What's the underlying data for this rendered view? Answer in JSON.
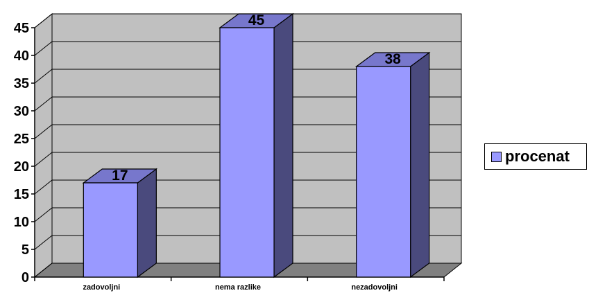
{
  "chart_data": {
    "type": "bar",
    "categories": [
      "zadovoljni",
      "nema razlike",
      "nezadovoljni"
    ],
    "series": [
      {
        "name": "procenat",
        "values": [
          17,
          45,
          38
        ]
      }
    ],
    "data_labels": [
      "17",
      "45",
      "38"
    ],
    "yticks": [
      "0",
      "5",
      "10",
      "15",
      "20",
      "25",
      "30",
      "35",
      "40",
      "45"
    ],
    "ylim": [
      0,
      45
    ],
    "grid": true,
    "legend_position": "right",
    "colors": {
      "bar_front": "#9999ff",
      "bar_side": "#4a4a7d",
      "bar_top": "#7777cc",
      "wall": "#c0c0c0",
      "floor": "#808080"
    }
  }
}
